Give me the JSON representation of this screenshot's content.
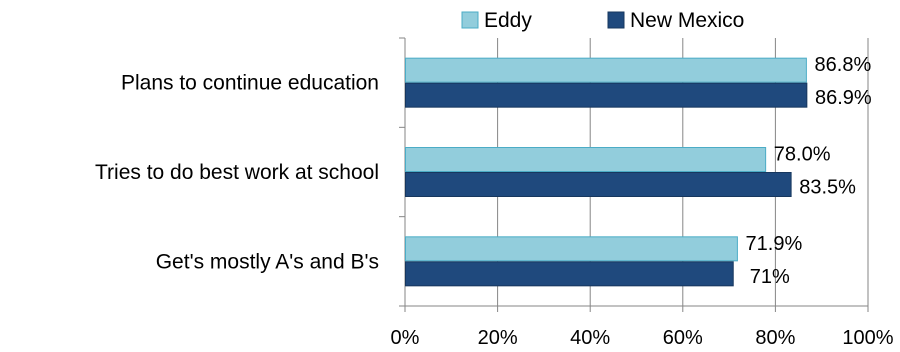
{
  "chart_data": {
    "type": "bar",
    "orientation": "horizontal",
    "categories": [
      "Plans to continue education",
      "Tries to do best work at school",
      "Get's mostly A's and B's"
    ],
    "series": [
      {
        "name": "Eddy",
        "values": [
          86.8,
          78.0,
          71.9
        ],
        "labels": [
          "86.8%",
          "78.0%",
          "71.9%"
        ],
        "color": "#92cddc",
        "border": "#4bacc6"
      },
      {
        "name": "New Mexico",
        "values": [
          86.9,
          83.5,
          71.0
        ],
        "labels": [
          "86.9%",
          "83.5%",
          "71%"
        ],
        "color": "#1f497d",
        "border": "#17375e"
      }
    ],
    "xlim": [
      0,
      100
    ],
    "xticks": [
      0,
      20,
      40,
      60,
      80,
      100
    ],
    "xtick_labels": [
      "0%",
      "20%",
      "40%",
      "60%",
      "80%",
      "100%"
    ],
    "grid": true,
    "legend_position": "top",
    "title": "",
    "xlabel": "",
    "ylabel": ""
  }
}
